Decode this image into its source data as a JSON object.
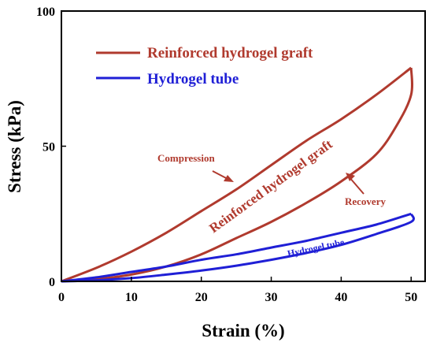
{
  "chart_data": {
    "type": "line",
    "title": "",
    "xlabel": "Strain (%)",
    "ylabel": "Stress (kPa)",
    "xlim": [
      0,
      52
    ],
    "ylim": [
      0,
      100
    ],
    "x_ticks": [
      "0",
      "10",
      "20",
      "30",
      "40",
      "50"
    ],
    "y_ticks": [
      "0",
      "50",
      "100"
    ],
    "grid": false,
    "legend_position": "top-left",
    "series": [
      {
        "name": "Reinforced hydrogel graft",
        "color": "#b03a2e",
        "loading": {
          "x": [
            0,
            5,
            10,
            15,
            20,
            25,
            30,
            35,
            40,
            45,
            50
          ],
          "y": [
            0,
            5,
            11,
            18,
            26,
            34,
            43,
            52,
            60,
            69,
            79
          ]
        },
        "unloading": {
          "x": [
            50,
            50,
            48,
            45,
            40,
            35,
            30,
            25,
            20,
            15,
            10,
            5,
            0
          ],
          "y": [
            79,
            69,
            58,
            47,
            37,
            29,
            22,
            16,
            10,
            5.5,
            2.5,
            0.8,
            0
          ]
        }
      },
      {
        "name": "Hydrogel tube",
        "color": "#1f1fd6",
        "loading": {
          "x": [
            0,
            5,
            10,
            15,
            20,
            25,
            30,
            35,
            40,
            45,
            50
          ],
          "y": [
            0,
            1.5,
            3.5,
            5.5,
            8,
            10,
            12.5,
            15,
            18,
            21,
            25
          ]
        },
        "unloading": {
          "x": [
            50,
            50,
            45,
            40,
            35,
            30,
            25,
            20,
            15,
            10,
            5,
            0
          ],
          "y": [
            25,
            22,
            17.5,
            13.5,
            10.5,
            8,
            5.8,
            4,
            2.5,
            1.2,
            0.4,
            0
          ]
        }
      }
    ],
    "annotations": {
      "compression": "Compression",
      "recovery": "Recovery",
      "reinforced_label": "Reinforced hydrogel graft",
      "tube_label": "Hydrogel tube"
    }
  }
}
